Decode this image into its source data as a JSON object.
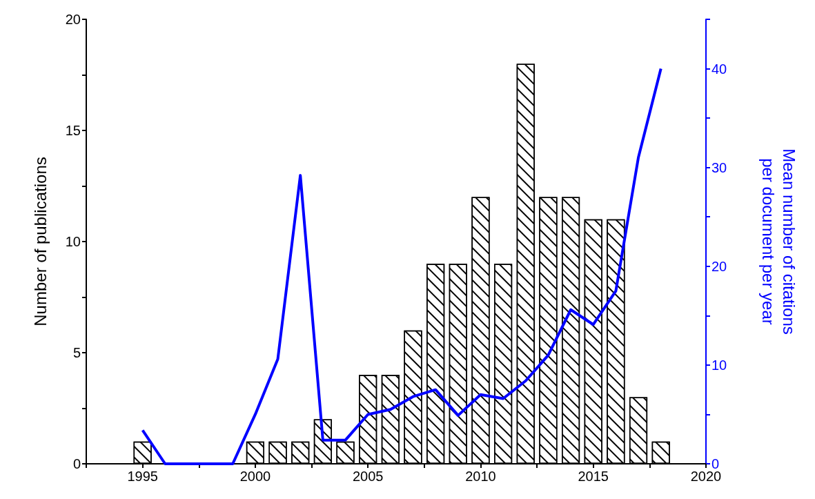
{
  "chart_data": {
    "type": "bar",
    "x": [
      1995,
      1996,
      1997,
      1998,
      1999,
      2000,
      2001,
      2002,
      2003,
      2004,
      2005,
      2006,
      2007,
      2008,
      2009,
      2010,
      2011,
      2012,
      2013,
      2014,
      2015,
      2016,
      2017,
      2018
    ],
    "series": [
      {
        "color": "#ffffff",
        "values": [
          1,
          null,
          null,
          null,
          null,
          1,
          1,
          1,
          2,
          1,
          4,
          4,
          6,
          9,
          9,
          12,
          9,
          18,
          12,
          12,
          11,
          11,
          3,
          1
        ]
      },
      {
        "type": "line",
        "axis": "y2",
        "color": "#0000ff",
        "marker": "none",
        "line_style": "solid",
        "values": [
          3.4,
          0,
          0,
          0,
          0,
          5,
          10.6,
          29.2,
          2.4,
          2.4,
          5.0,
          5.5,
          6.8,
          7.5,
          4.9,
          7.0,
          6.6,
          8.4,
          11.0,
          15.6,
          14.1,
          17.5,
          31.0,
          40.0
        ]
      }
    ],
    "ylabel": "Number of publications",
    "y2label": "Mean number of citations\nper document per year",
    "xlim": [
      1992.5,
      2020
    ],
    "xticks": [
      {
        "value": 1992.5,
        "label": null
      },
      1995,
      {
        "value": 1997.5,
        "label": null
      },
      2000,
      {
        "value": 2002.5,
        "label": null
      },
      2005,
      {
        "value": 2007.5,
        "label": null
      },
      2010,
      {
        "value": 2012.5,
        "label": null
      },
      2015,
      {
        "value": 2017.5,
        "label": null
      },
      2020
    ],
    "ylim": [
      0,
      20
    ],
    "yticks": [
      0,
      {
        "value": 2.5,
        "label": null
      },
      5,
      {
        "value": 7.5,
        "label": null
      },
      10,
      {
        "value": 12.5,
        "label": null
      },
      15,
      {
        "value": 17.5,
        "label": null
      },
      20
    ],
    "y2lim": [
      0,
      45
    ],
    "y2ticks": [
      0,
      {
        "value": 5,
        "label": null
      },
      10,
      {
        "value": 15,
        "label": null
      },
      20,
      {
        "value": 25,
        "label": null
      },
      30,
      {
        "value": 35,
        "label": null
      },
      40,
      {
        "value": 45,
        "label": null
      }
    ],
    "grid": false
  }
}
